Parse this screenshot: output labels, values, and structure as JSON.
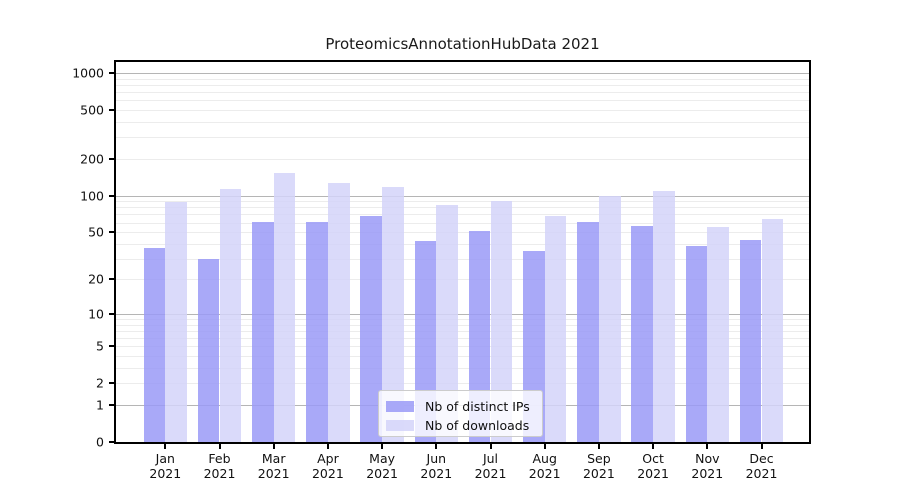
{
  "chart_data": {
    "type": "bar",
    "title": "ProteomicsAnnotationHubData 2021",
    "scale": "log1p",
    "months": [
      "Jan",
      "Feb",
      "Mar",
      "Apr",
      "May",
      "Jun",
      "Jul",
      "Aug",
      "Sep",
      "Oct",
      "Nov",
      "Dec"
    ],
    "year": "2021",
    "series": [
      {
        "name": "Nb of distinct IPs",
        "color": "#9a9af7",
        "values": [
          37,
          30,
          61,
          61,
          68,
          42,
          51,
          35,
          61,
          56,
          38,
          43
        ]
      },
      {
        "name": "Nb of downloads",
        "color": "#d3d3f9",
        "values": [
          89,
          114,
          154,
          128,
          118,
          83,
          91,
          68,
          100,
          110,
          55,
          64
        ]
      }
    ],
    "y_tick_labels": [
      "0",
      "1",
      "2",
      "5",
      "10",
      "20",
      "50",
      "100",
      "200",
      "500",
      "1000"
    ],
    "ylim": [
      0,
      1230
    ],
    "grid": true,
    "legend_position": "bottom-center"
  },
  "colors": {
    "axis": "#000000",
    "grid_major": "#b5b5b5",
    "grid_minor": "#ececec",
    "bar_dark": "#9a9af7",
    "bar_light": "#d3d3f9",
    "text": "#1a1a1a",
    "legend_border": "#cccccc"
  }
}
